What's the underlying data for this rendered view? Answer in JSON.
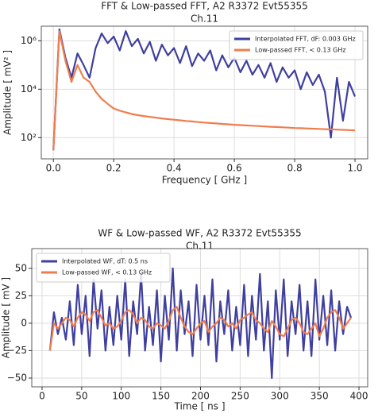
{
  "chart_data": [
    {
      "type": "line",
      "title": "FFT & Low-passed FFT, A2 R3372 Evt55355",
      "subtitle": "Ch.11",
      "x_label": "Frequency [ GHz ]",
      "y_label": "Amplitude [ mV² ]",
      "ylog": true,
      "grid": true,
      "legend": "upper right",
      "xlim": [
        -0.04,
        1.042
      ],
      "ylim": [
        13.3,
        4000000
      ],
      "xticks": [
        {
          "value": 0,
          "label": "0.0"
        },
        0.2,
        0.4,
        0.6,
        0.8,
        {
          "value": 1,
          "label": "1.0"
        }
      ],
      "yticks": [
        {
          "value": 100,
          "label": "10²"
        },
        {
          "value": 10000,
          "label": "10⁴"
        },
        {
          "value": 1000000,
          "label": "10⁶"
        }
      ],
      "x": [
        0,
        0.02,
        0.04,
        0.06,
        0.08,
        0.1,
        0.12,
        0.14,
        0.16,
        0.18,
        0.2,
        0.22,
        0.24,
        0.26,
        0.28,
        0.3,
        0.32,
        0.34,
        0.36,
        0.38,
        0.4,
        0.42,
        0.44,
        0.46,
        0.48,
        0.5,
        0.52,
        0.54,
        0.56,
        0.58,
        0.6,
        0.62,
        0.64,
        0.66,
        0.68,
        0.7,
        0.72,
        0.74,
        0.76,
        0.78,
        0.8,
        0.82,
        0.84,
        0.86,
        0.88,
        0.9,
        0.92,
        0.94,
        0.96,
        0.98,
        1
      ],
      "series": [
        {
          "name": "Interpolated FFT, dF: 0.003 GHz",
          "color": "#3f3f9f",
          "values": [
            30,
            3000000,
            200000,
            30000,
            300000,
            100000,
            30000,
            500000,
            2000000,
            800000,
            1500000,
            400000,
            2500000,
            600000,
            1200000,
            300000,
            900000,
            150000,
            700000,
            250000,
            500000,
            120000,
            600000,
            90000,
            300000,
            150000,
            400000,
            60000,
            250000,
            80000,
            200000,
            50000,
            150000,
            40000,
            100000,
            30000,
            120000,
            20000,
            80000,
            30000,
            60000,
            10000,
            50000,
            15000,
            40000,
            8000,
            100,
            30000,
            500,
            20000,
            5000
          ]
        },
        {
          "name": "Low-passed FFT, < 0.13 GHz",
          "color": "#f07d4e",
          "values": [
            30,
            2500000,
            150000,
            20000,
            100000,
            30000,
            20000,
            8000,
            4000,
            2500,
            1600,
            1300,
            1100,
            950,
            850,
            780,
            720,
            670,
            620,
            580,
            550,
            520,
            490,
            465,
            440,
            420,
            400,
            385,
            370,
            355,
            340,
            330,
            320,
            310,
            300,
            290,
            282,
            274,
            266,
            258,
            250,
            245,
            240,
            235,
            230,
            225,
            220,
            215,
            210,
            205,
            200
          ]
        }
      ]
    },
    {
      "type": "line",
      "title": "WF & Low-passed WF, A2 R3372 Evt55355",
      "subtitle": "Ch.11",
      "x_label": "Time [ ns ]",
      "y_label": "Amplitude [ mV ]",
      "ylog": false,
      "grid": true,
      "legend": "upper left",
      "xlim": [
        -13,
        411
      ],
      "ylim": [
        -58,
        68
      ],
      "xticks": [
        0,
        50,
        100,
        150,
        200,
        250,
        300,
        350,
        400
      ],
      "yticks": [
        {
          "value": -50,
          "label": "−50"
        },
        {
          "value": -25,
          "label": "−25"
        },
        0,
        25,
        50
      ],
      "x": [
        10,
        15,
        20,
        25,
        30,
        35,
        40,
        45,
        50,
        55,
        60,
        65,
        70,
        75,
        80,
        85,
        90,
        95,
        100,
        105,
        110,
        115,
        120,
        125,
        130,
        135,
        140,
        145,
        150,
        155,
        160,
        165,
        170,
        175,
        180,
        185,
        190,
        195,
        200,
        205,
        210,
        215,
        220,
        225,
        230,
        235,
        240,
        245,
        250,
        255,
        260,
        265,
        270,
        275,
        280,
        285,
        290,
        295,
        300,
        305,
        310,
        315,
        320,
        325,
        330,
        335,
        340,
        345,
        350,
        355,
        360,
        365,
        370,
        375,
        380,
        385,
        390
      ],
      "series": [
        {
          "name": "Interpolated WF, dT: 0.5 ns",
          "color": "#3f3f9f",
          "values": [
            -25,
            10,
            -10,
            5,
            -15,
            20,
            -20,
            35,
            -10,
            25,
            -30,
            40,
            -5,
            30,
            -25,
            15,
            -20,
            25,
            -15,
            40,
            -30,
            20,
            -10,
            45,
            -25,
            15,
            -20,
            30,
            -35,
            25,
            -15,
            50,
            -25,
            30,
            -10,
            20,
            -30,
            35,
            -15,
            25,
            -20,
            40,
            -35,
            20,
            -10,
            30,
            -25,
            15,
            -20,
            35,
            -30,
            25,
            -15,
            45,
            -25,
            20,
            -50,
            30,
            -15,
            40,
            -30,
            20,
            -10,
            35,
            -25,
            20,
            -30,
            40,
            -15,
            25,
            -20,
            30,
            -25,
            20,
            -10,
            15,
            5
          ]
        },
        {
          "name": "Low-passed WF, < 0.13 GHz",
          "color": "#f07d4e",
          "values": [
            -25,
            0,
            -5,
            0,
            5,
            3,
            -3,
            5,
            10,
            8,
            2,
            10,
            12,
            5,
            -2,
            0,
            -5,
            -3,
            2,
            10,
            12,
            8,
            0,
            5,
            3,
            -3,
            -5,
            0,
            -2,
            -5,
            2,
            12,
            15,
            5,
            -3,
            -8,
            -10,
            -5,
            0,
            2,
            -8,
            -3,
            0,
            5,
            3,
            -3,
            0,
            -5,
            3,
            5,
            8,
            10,
            3,
            0,
            -5,
            -8,
            2,
            -3,
            -10,
            -12,
            -5,
            3,
            5,
            0,
            -8,
            -10,
            -5,
            0,
            -12,
            -5,
            5,
            10,
            12,
            5,
            -5,
            0,
            5
          ]
        }
      ]
    }
  ]
}
